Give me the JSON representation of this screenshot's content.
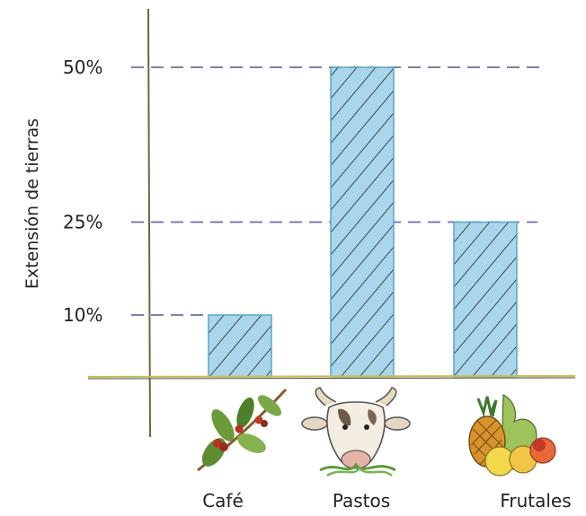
{
  "chart_data": {
    "type": "bar",
    "title": "",
    "xlabel": "",
    "ylabel": "Extensión de tierras",
    "categories": [
      "Café",
      "Pastos",
      "Frutales"
    ],
    "values": [
      10,
      50,
      25
    ],
    "y_unit": "%",
    "yticks": [
      "10%",
      "25%",
      "50%"
    ],
    "ylim": [
      0,
      50
    ],
    "grid": "dashed reference lines at bar tops",
    "legend": "none",
    "category_icons": [
      "coffee-branch-icon",
      "cow-head-icon",
      "fruit-basket-icon"
    ],
    "colors": {
      "bar_fill": "#a9d6ea",
      "bar_stroke": "#5aa6c8",
      "hatch": "#222222",
      "dash_line": "#6b6fa8",
      "axis": "#6b6a3a",
      "baseline": "#c9be55"
    }
  }
}
